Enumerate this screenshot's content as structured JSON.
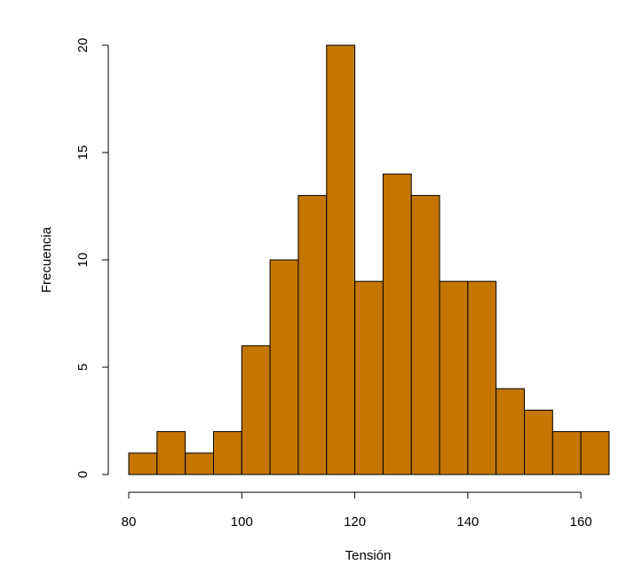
{
  "chart_data": {
    "type": "bar",
    "title": "",
    "xlabel": "Tensión",
    "ylabel": "Frecuencia",
    "bins": [
      {
        "start": 80,
        "end": 85,
        "count": 1
      },
      {
        "start": 85,
        "end": 90,
        "count": 2
      },
      {
        "start": 90,
        "end": 95,
        "count": 1
      },
      {
        "start": 95,
        "end": 100,
        "count": 2
      },
      {
        "start": 100,
        "end": 105,
        "count": 6
      },
      {
        "start": 105,
        "end": 110,
        "count": 10
      },
      {
        "start": 110,
        "end": 115,
        "count": 13
      },
      {
        "start": 115,
        "end": 120,
        "count": 20
      },
      {
        "start": 120,
        "end": 125,
        "count": 9
      },
      {
        "start": 125,
        "end": 130,
        "count": 14
      },
      {
        "start": 130,
        "end": 135,
        "count": 13
      },
      {
        "start": 135,
        "end": 140,
        "count": 9
      },
      {
        "start": 140,
        "end": 145,
        "count": 9
      },
      {
        "start": 145,
        "end": 150,
        "count": 4
      },
      {
        "start": 150,
        "end": 155,
        "count": 3
      },
      {
        "start": 155,
        "end": 160,
        "count": 2
      },
      {
        "start": 160,
        "end": 165,
        "count": 2
      }
    ],
    "xlim": [
      80,
      165
    ],
    "ylim": [
      0,
      20
    ],
    "xticks": [
      80,
      100,
      120,
      140,
      160
    ],
    "yticks": [
      0,
      5,
      10,
      15,
      20
    ],
    "bar_color": "#C47502",
    "bar_edge_color": "#000000",
    "grid": false
  }
}
